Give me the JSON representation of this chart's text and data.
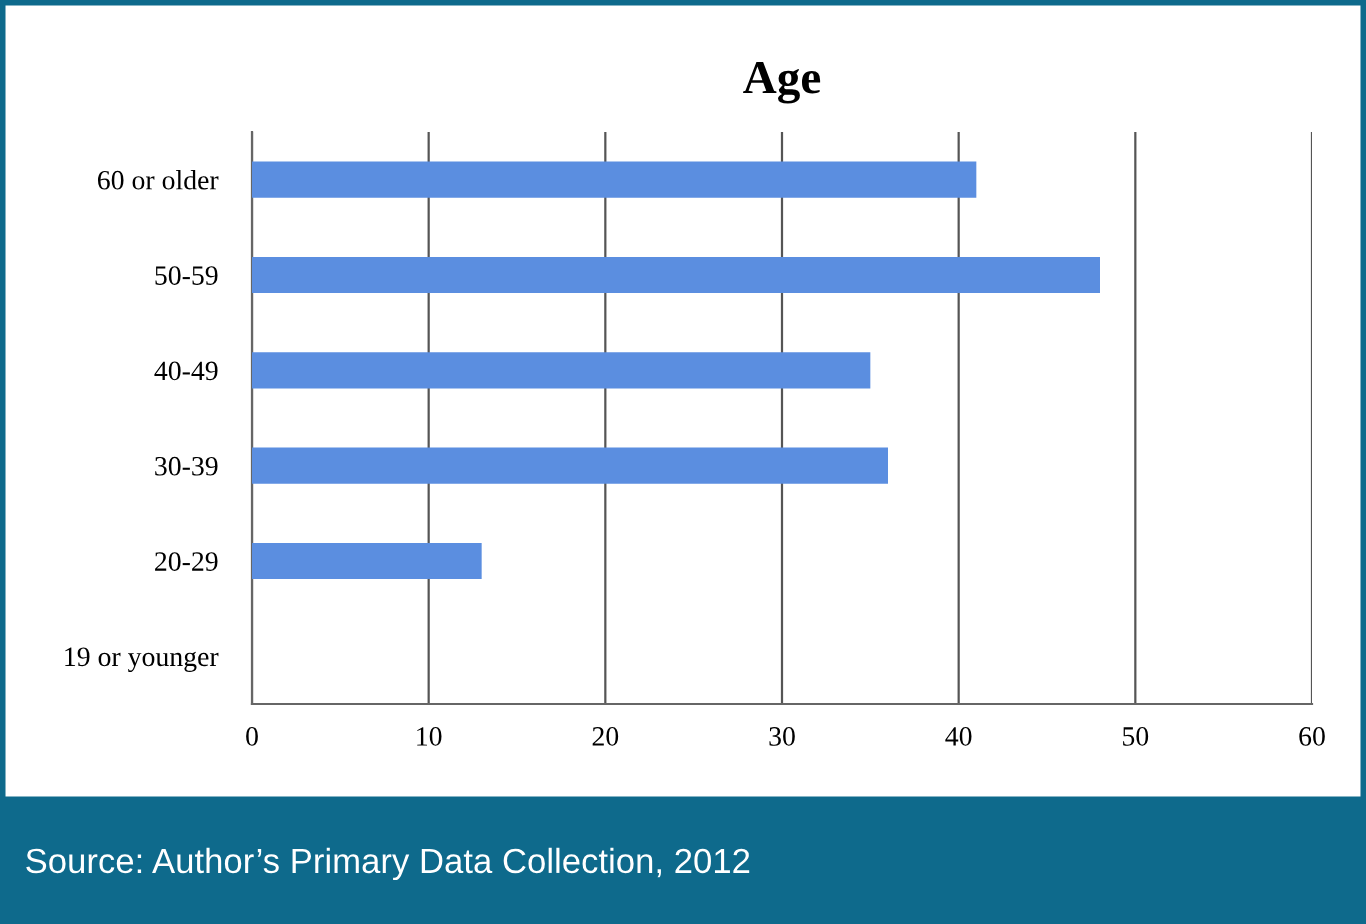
{
  "chart_data": {
    "type": "bar",
    "orientation": "horizontal",
    "title": "Age",
    "categories": [
      "60 or older",
      "50-59",
      "40-49",
      "30-39",
      "20-29",
      "19 or younger"
    ],
    "values": [
      41,
      48,
      35,
      36,
      13,
      0
    ],
    "color": "#5b8ee0",
    "xlim": [
      0,
      60
    ],
    "xticks": [
      0,
      10,
      20,
      30,
      40,
      50,
      60
    ],
    "grid": "x",
    "annotations": [
      "Source: Author’s Primary Data Collection, 2012"
    ]
  }
}
